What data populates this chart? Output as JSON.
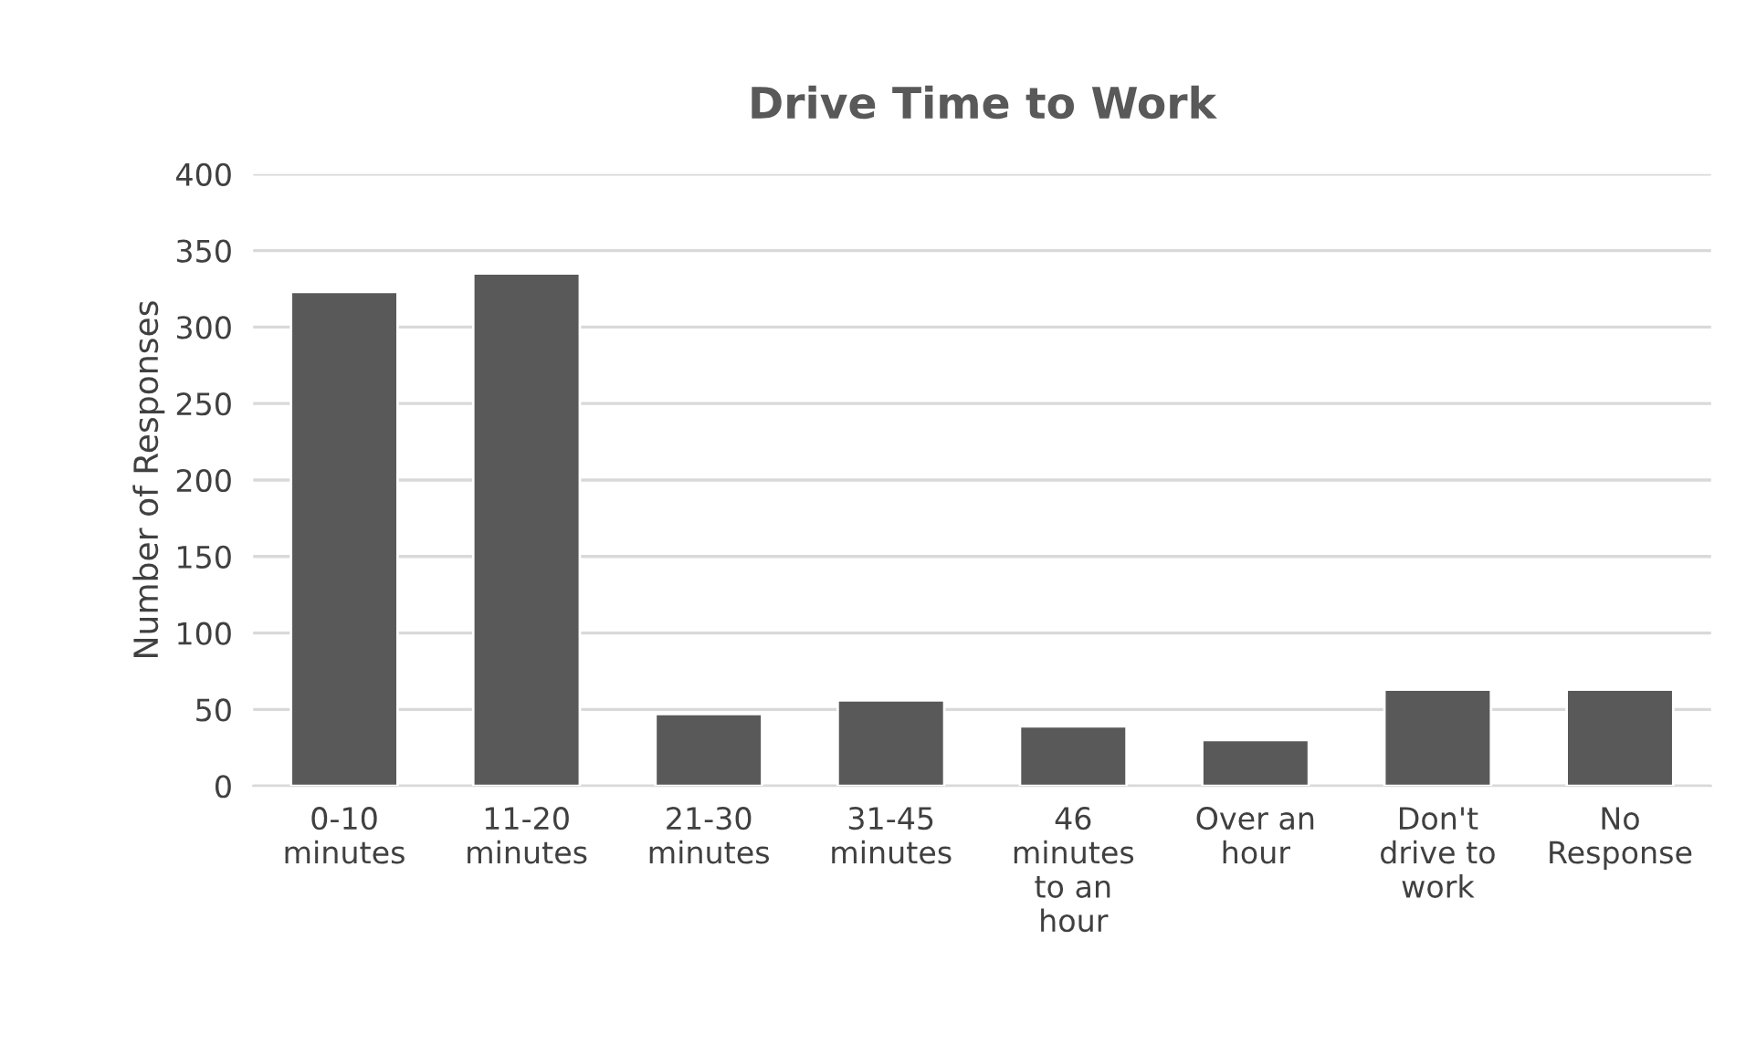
{
  "chart_data": {
    "type": "bar",
    "title": "Drive Time to Work",
    "ylabel": "Number of Responses",
    "categories": [
      "0-10\nminutes",
      "11-20\nminutes",
      "21-30\nminutes",
      "31-45\nminutes",
      "46\nminutes\nto an\nhour",
      "Over an\nhour",
      "Don't\ndrive to\nwork",
      "No\nResponse"
    ],
    "values": [
      323,
      335,
      47,
      56,
      39,
      30,
      63,
      63
    ],
    "color": "#595959",
    "ylim": [
      0,
      400
    ],
    "yticks": [
      0,
      50,
      100,
      150,
      200,
      250,
      300,
      350,
      400
    ],
    "grid": "y",
    "legend": false
  }
}
